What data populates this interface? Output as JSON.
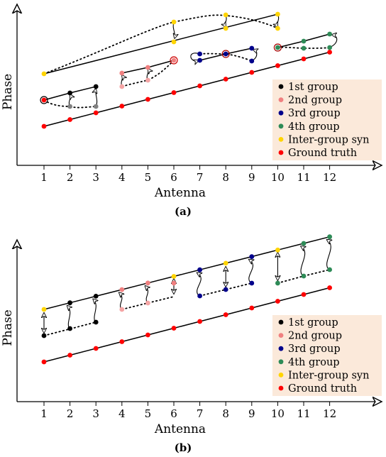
{
  "colors": {
    "ground_truth": "#ff0000",
    "inter_group_syn": "#ffd400",
    "group1": "#000000",
    "group1_light": "#808080",
    "group2": "#f08080",
    "group2_light": "#f4a4a4",
    "group3": "#00008b",
    "group4": "#2e8b57",
    "legend_bg": "#fbe9da"
  },
  "panels": [
    {
      "caption": "(a)",
      "xlabel": "Antenna",
      "ylabel": "Phase",
      "x_ticks": [
        "1",
        "2",
        "3",
        "4",
        "5",
        "6",
        "7",
        "8",
        "9",
        "10",
        "11",
        "12"
      ],
      "legend": [
        {
          "label": "1st group",
          "color": "#000000"
        },
        {
          "label": "2nd group",
          "color": "#f08080"
        },
        {
          "label": "3rd group",
          "color": "#00008b"
        },
        {
          "label": "4th group",
          "color": "#2e8b57"
        },
        {
          "label": "Inter-group syn",
          "color": "#ffd400"
        },
        {
          "label": "Ground truth",
          "color": "#ff0000"
        }
      ]
    },
    {
      "caption": "(b)",
      "xlabel": "Antenna",
      "ylabel": "Phase",
      "x_ticks": [
        "1",
        "2",
        "3",
        "4",
        "5",
        "6",
        "7",
        "8",
        "9",
        "10",
        "11",
        "12"
      ],
      "legend": [
        {
          "label": "1st group",
          "color": "#000000"
        },
        {
          "label": "2nd group",
          "color": "#f08080"
        },
        {
          "label": "3rd group",
          "color": "#00008b"
        },
        {
          "label": "4th group",
          "color": "#2e8b57"
        },
        {
          "label": "Inter-group syn",
          "color": "#ffd400"
        },
        {
          "label": "Ground truth",
          "color": "#ff0000"
        }
      ]
    }
  ]
}
